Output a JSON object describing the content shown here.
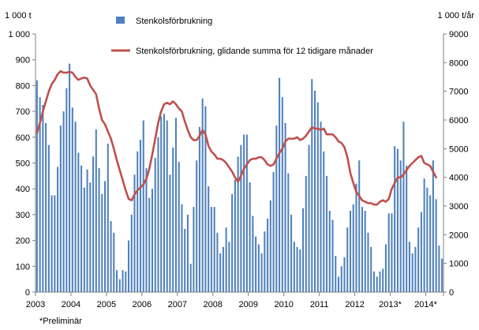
{
  "chart_data": {
    "type": "bar",
    "left_unit": "1 000 t",
    "right_unit": "1 000 t/år",
    "footnote": "*Preliminär",
    "legend_position": "top",
    "grid": false,
    "x_start": "2003-01",
    "x_end": "2014-06",
    "x_tick_labels": [
      "2003",
      "2004",
      "2005",
      "2006",
      "2007",
      "2008",
      "2009",
      "2010",
      "2011",
      "2012",
      "2013*",
      "2014*"
    ],
    "y_left_range": [
      0,
      1000
    ],
    "y_left_ticks": [
      "0",
      "100",
      "200",
      "300",
      "400",
      "500",
      "600",
      "700",
      "800",
      "900",
      "1 000"
    ],
    "y_right_range": [
      0,
      9000
    ],
    "y_right_ticks": [
      "0",
      "1000",
      "2000",
      "3000",
      "4000",
      "5000",
      "6000",
      "7000",
      "8000",
      "9000"
    ],
    "series": [
      {
        "name": "Stenkolsförbrukning",
        "kind": "bar",
        "axis": "left",
        "color": "#4f81bd",
        "values": [
          820,
          755,
          725,
          655,
          570,
          375,
          375,
          485,
          645,
          700,
          790,
          885,
          715,
          660,
          540,
          490,
          405,
          475,
          425,
          525,
          630,
          480,
          380,
          430,
          575,
          275,
          230,
          85,
          50,
          85,
          80,
          200,
          300,
          455,
          545,
          590,
          665,
          480,
          365,
          400,
          520,
          600,
          680,
          690,
          665,
          455,
          560,
          675,
          505,
          340,
          245,
          300,
          110,
          330,
          510,
          640,
          750,
          720,
          410,
          330,
          330,
          230,
          150,
          175,
          250,
          195,
          380,
          435,
          525,
          570,
          610,
          610,
          425,
          295,
          215,
          185,
          150,
          235,
          285,
          355,
          465,
          645,
          830,
          755,
          655,
          460,
          300,
          195,
          175,
          165,
          325,
          450,
          570,
          825,
          780,
          735,
          660,
          545,
          450,
          315,
          280,
          140,
          60,
          100,
          135,
          250,
          315,
          340,
          420,
          510,
          330,
          315,
          230,
          175,
          80,
          60,
          80,
          90,
          185,
          305,
          305,
          565,
          555,
          510,
          660,
          490,
          195,
          150,
          175,
          250,
          310,
          440,
          405,
          375,
          510,
          360,
          180,
          130
        ]
      },
      {
        "name": "Stenkolsförbrukning, glidande summa för 12 tidigare månader",
        "kind": "line",
        "axis": "right",
        "color": "#c0504d",
        "values": [
          5550,
          5900,
          6300,
          6650,
          7000,
          7250,
          7400,
          7600,
          7700,
          7650,
          7650,
          7680,
          7650,
          7500,
          7400,
          7450,
          7480,
          7450,
          7200,
          7050,
          6900,
          6400,
          6000,
          5850,
          5600,
          5350,
          5000,
          4600,
          4250,
          3900,
          3550,
          3250,
          3200,
          3400,
          3550,
          3650,
          3750,
          3950,
          4300,
          4800,
          5350,
          5900,
          6300,
          6550,
          6600,
          6550,
          6650,
          6550,
          6400,
          6300,
          5950,
          5650,
          5400,
          5300,
          5300,
          5450,
          5650,
          5500,
          5100,
          4900,
          4800,
          4650,
          4650,
          4600,
          4500,
          4350,
          4200,
          4000,
          3850,
          4050,
          4300,
          4450,
          4600,
          4650,
          4650,
          4700,
          4700,
          4600,
          4450,
          4400,
          4450,
          4650,
          4850,
          5000,
          5250,
          5350,
          5350,
          5350,
          5400,
          5300,
          5350,
          5450,
          5600,
          5750,
          5700,
          5700,
          5650,
          5700,
          5500,
          5500,
          5500,
          5400,
          5250,
          5200,
          5050,
          4700,
          4150,
          3800,
          3500,
          3350,
          3200,
          3150,
          3100,
          3100,
          3050,
          3050,
          3150,
          3200,
          3150,
          3250,
          3600,
          3800,
          4000,
          4000,
          4100,
          4250,
          4400,
          4500,
          4600,
          4700,
          4750,
          4500,
          4450,
          4400,
          4200,
          4000
        ]
      }
    ]
  }
}
